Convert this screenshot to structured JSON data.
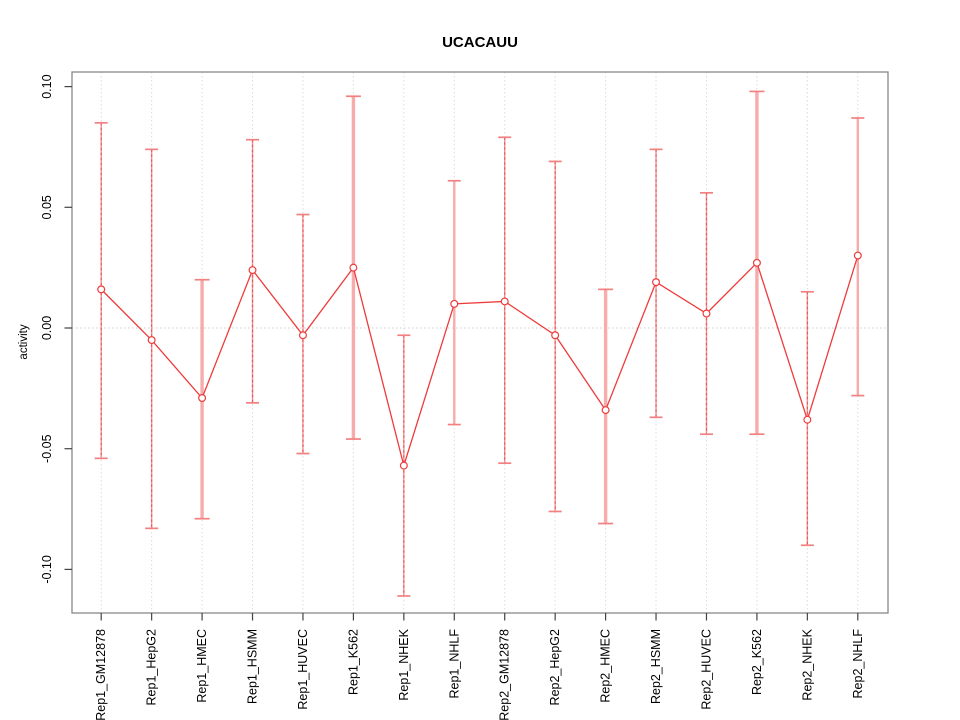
{
  "window": {
    "background": "#ffffff"
  },
  "colors": {
    "series": "#ee3b3b",
    "marker_fill": "#ffffff",
    "error_bar": "#f49090",
    "error_bar_dash": "#e85858",
    "error_bar_thick": "#f7abab",
    "error_bar_cap": "#f28080",
    "grid": "#dcdcdc",
    "zero_line": "#cdcdcd",
    "box": "#888888",
    "tick": "#444444",
    "text": "#000000"
  },
  "chart_data": {
    "type": "line",
    "title": "UCACAUU",
    "xlabel": "",
    "ylabel": "activity",
    "ylim": [
      -0.118,
      0.106
    ],
    "yticks": [
      -0.1,
      -0.05,
      0.0,
      0.05,
      0.1
    ],
    "ytick_labels": [
      "-0.10",
      "-0.05",
      "0.00",
      "0.05",
      "0.10"
    ],
    "grid": "dotted vertical gridline at each category; dotted horizontal line at y=0",
    "legend": "none",
    "marker": "open-circle",
    "categories": [
      "Rep1_GM12878",
      "Rep1_HepG2",
      "Rep1_HMEC",
      "Rep1_HSMM",
      "Rep1_HUVEC",
      "Rep1_K562",
      "Rep1_NHEK",
      "Rep1_NHLF",
      "Rep2_GM12878",
      "Rep2_HepG2",
      "Rep2_HMEC",
      "Rep2_HSMM",
      "Rep2_HUVEC",
      "Rep2_K562",
      "Rep2_NHEK",
      "Rep2_NHLF"
    ],
    "series": [
      {
        "name": "activity",
        "values": [
          0.016,
          -0.005,
          -0.029,
          0.024,
          -0.003,
          0.025,
          -0.057,
          0.01,
          0.011,
          -0.003,
          -0.034,
          0.019,
          0.006,
          0.027,
          -0.038,
          0.03
        ],
        "lower": [
          -0.054,
          -0.083,
          -0.079,
          -0.031,
          -0.052,
          -0.046,
          -0.111,
          -0.04,
          -0.056,
          -0.076,
          -0.081,
          -0.037,
          -0.044,
          -0.044,
          -0.09,
          -0.028
        ],
        "upper": [
          0.085,
          0.074,
          0.02,
          0.078,
          0.047,
          0.096,
          -0.003,
          0.061,
          0.079,
          0.069,
          0.016,
          0.074,
          0.056,
          0.098,
          0.015,
          0.087
        ]
      }
    ],
    "error_bar_emphasis": [
      "normal",
      "normal",
      "thick",
      "normal",
      "normal",
      "thick",
      "normal",
      "medium",
      "normal",
      "normal",
      "thick",
      "normal",
      "normal",
      "thick",
      "normal",
      "medium"
    ]
  }
}
